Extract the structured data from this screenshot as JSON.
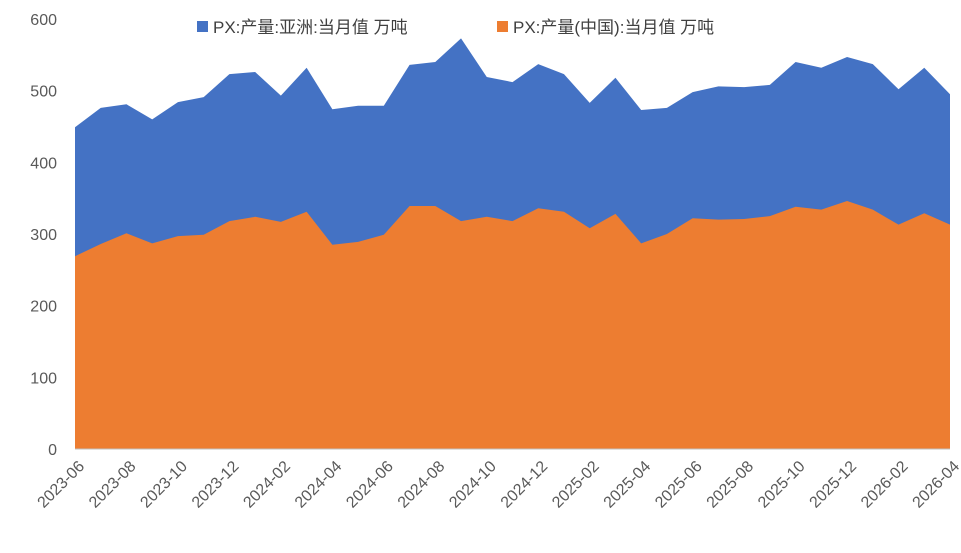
{
  "chart_data": {
    "type": "area",
    "categories": [
      "2023-06",
      null,
      "2023-08",
      null,
      "2023-10",
      null,
      "2023-12",
      null,
      "2024-02",
      null,
      "2024-04",
      null,
      "2024-06",
      null,
      "2024-08",
      null,
      "2024-10",
      null,
      "2024-12",
      null,
      "2025-02",
      null,
      "2025-04",
      null,
      "2025-06",
      null,
      "2025-08",
      null,
      "2025-10",
      null,
      "2025-12",
      null,
      "2026-02",
      null,
      "2026-04"
    ],
    "series": [
      {
        "name": "PX:产量:亚洲:当月值 万吨",
        "color": "#4472c4",
        "values": [
          449,
          476,
          481,
          460,
          484,
          491,
          523,
          526,
          493,
          532,
          474,
          479,
          479,
          536,
          540,
          573,
          519,
          512,
          537,
          523,
          483,
          518,
          473,
          476,
          498,
          506,
          505,
          508,
          540,
          532,
          547,
          537,
          502,
          532,
          495
        ]
      },
      {
        "name": "PX:产量(中国):当月值 万吨",
        "color": "#ed7d31",
        "values": [
          269,
          286,
          301,
          287,
          297,
          299,
          318,
          324,
          317,
          331,
          285,
          289,
          299,
          339,
          339,
          318,
          324,
          318,
          336,
          331,
          308,
          328,
          287,
          300,
          322,
          320,
          321,
          325,
          338,
          334,
          346,
          334,
          313,
          329,
          313
        ]
      }
    ],
    "ylim": [
      0,
      600
    ],
    "yticks": [
      0,
      100,
      200,
      300,
      400,
      500,
      600
    ],
    "grid": false,
    "legend": "top"
  }
}
